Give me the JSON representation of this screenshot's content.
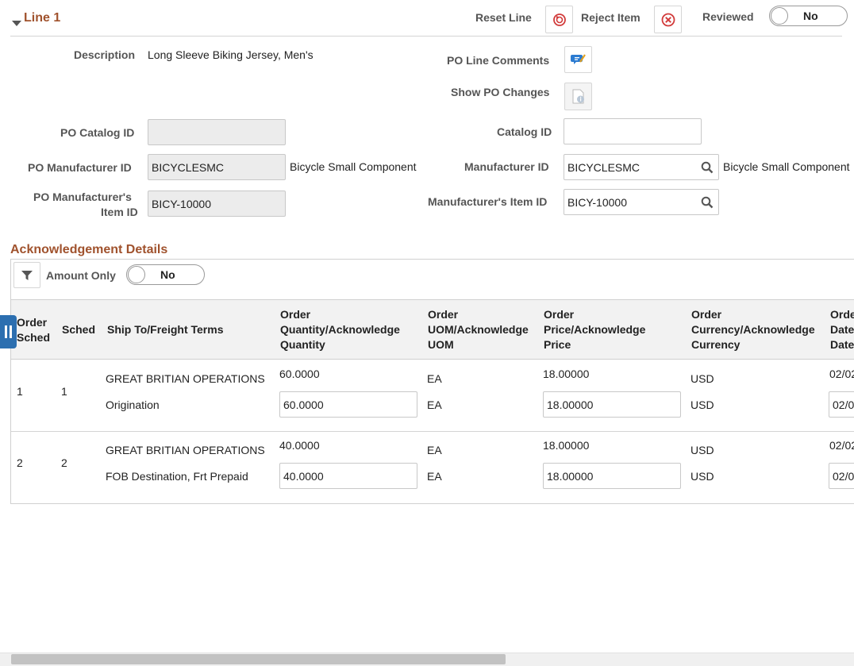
{
  "line": {
    "title": "Line 1",
    "reset_label": "Reset Line",
    "reject_label": "Reject Item",
    "reviewed_label": "Reviewed",
    "reviewed_value": "No"
  },
  "details": {
    "description_label": "Description",
    "description_value": "Long Sleeve Biking Jersey, Men's",
    "po_line_comments_label": "PO Line Comments",
    "show_po_changes_label": "Show PO Changes",
    "po_catalog_id_label": "PO Catalog ID",
    "po_catalog_id_value": "",
    "catalog_id_label": "Catalog ID",
    "catalog_id_value": "",
    "po_manufacturer_id_label": "PO Manufacturer ID",
    "po_manufacturer_id_value": "BICYCLESMC",
    "po_manufacturer_desc": "Bicycle Small Component",
    "manufacturer_id_label": "Manufacturer ID",
    "manufacturer_id_value": "BICYCLESMC",
    "manufacturer_desc": "Bicycle Small Component",
    "po_mfr_item_label_1": "PO Manufacturer's",
    "po_mfr_item_label_2": "Item ID",
    "po_mfr_item_value": "BICY-10000",
    "mfr_item_label": "Manufacturer's Item ID",
    "mfr_item_value": "BICY-10000"
  },
  "ack": {
    "title": "Acknowledgement Details",
    "amount_only_label": "Amount Only",
    "amount_only_value": "No",
    "headers": {
      "order_sched_1": "Order",
      "order_sched_2": "Sched",
      "sched": "Sched",
      "ship_to": "Ship To/Freight Terms",
      "qty_1": "Order",
      "qty_2": "Quantity/Acknowledge",
      "qty_3": "Quantity",
      "uom_1": "Order",
      "uom_2": "UOM/Acknowledge",
      "uom_3": "UOM",
      "price_1": "Order",
      "price_2": "Price/Acknowledge",
      "price_3": "Price",
      "cur_1": "Order",
      "cur_2": "Currency/Acknowledge",
      "cur_3": "Currency",
      "date_1": "Orde",
      "date_2": "Date",
      "date_3": "Date"
    },
    "rows": [
      {
        "order_sched": "1",
        "sched": "1",
        "ship_to": "GREAT BRITIAN OPERATIONS",
        "freight": "Origination",
        "order_qty": "60.0000",
        "ack_qty": "60.0000",
        "order_uom": "EA",
        "ack_uom": "EA",
        "order_price": "18.00000",
        "ack_price": "18.00000",
        "order_cur": "USD",
        "ack_cur": "USD",
        "order_date": "02/02",
        "ack_date": "02/0"
      },
      {
        "order_sched": "2",
        "sched": "2",
        "ship_to": "GREAT BRITIAN OPERATIONS",
        "freight": "FOB Destination, Frt Prepaid",
        "order_qty": "40.0000",
        "ack_qty": "40.0000",
        "order_uom": "EA",
        "ack_uom": "EA",
        "order_price": "18.00000",
        "ack_price": "18.00000",
        "order_cur": "USD",
        "ack_cur": "USD",
        "order_date": "02/02",
        "ack_date": "02/0"
      }
    ]
  }
}
